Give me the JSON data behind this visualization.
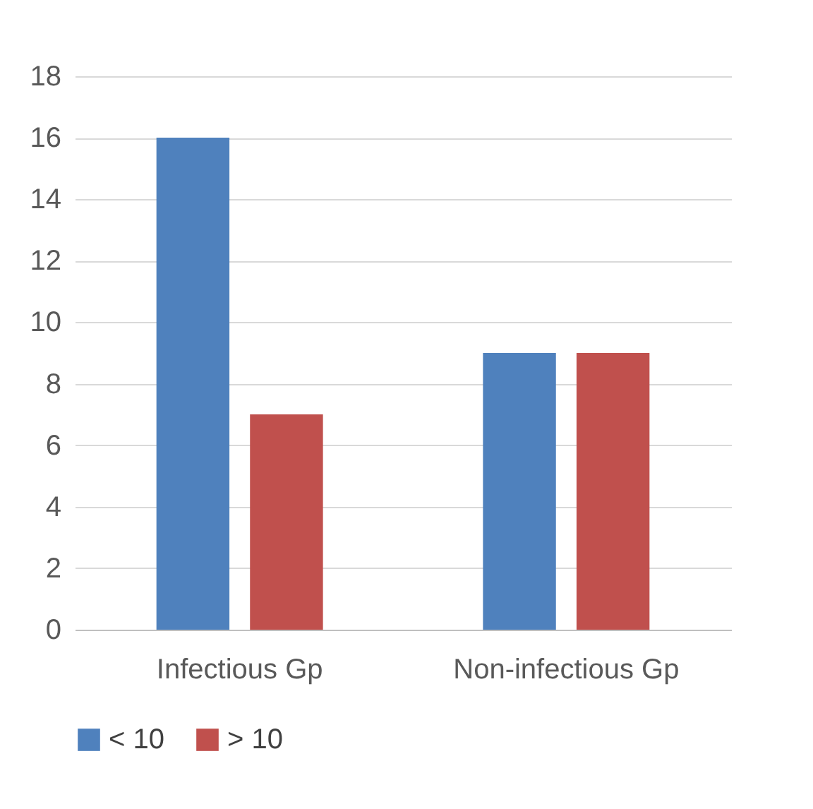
{
  "chart_data": {
    "type": "bar",
    "categories": [
      "Infectious Gp",
      "Non-infectious Gp"
    ],
    "series": [
      {
        "name": "< 10",
        "color": "#4f81bd",
        "values": [
          16,
          9
        ]
      },
      {
        "name": "> 10",
        "color": "#c0504d",
        "values": [
          7,
          9
        ]
      }
    ],
    "ylim": [
      0,
      18
    ],
    "yticks": [
      0,
      2,
      4,
      6,
      8,
      10,
      12,
      14,
      16,
      18
    ],
    "grid": "y",
    "legend": "bottom"
  }
}
